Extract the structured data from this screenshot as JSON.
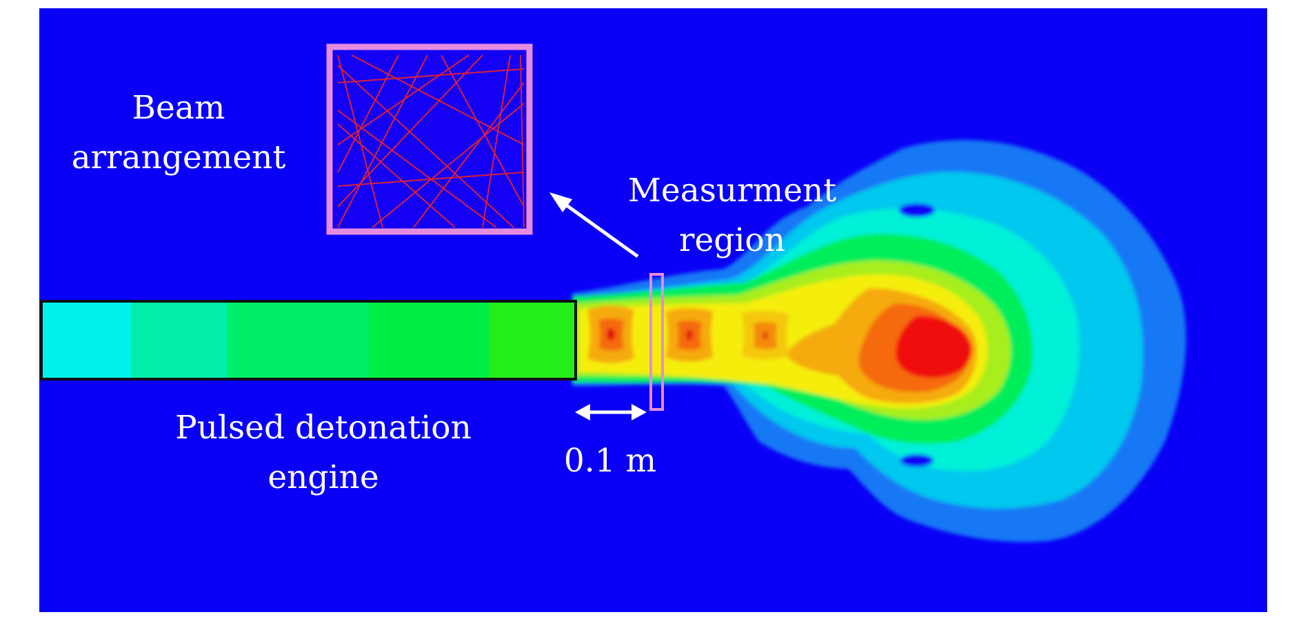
{
  "labels": {
    "beam_line1": "Beam",
    "beam_line2": "arrangement",
    "measurement_line1": "Measurment",
    "measurement_line2": "region",
    "engine_line1": "Pulsed detonation",
    "engine_line2": "engine",
    "scale": "0.1 m"
  },
  "colors": {
    "background": "#0a00f5",
    "highlight_box": "#e58be0",
    "beam_lines": "#d8203a",
    "engine_outline": "#111111",
    "arrows": "#ffffff"
  },
  "engine_segments": [
    "#00f2ee",
    "#00eea8",
    "#00ee6a",
    "#00ee45",
    "#22ee1c"
  ]
}
